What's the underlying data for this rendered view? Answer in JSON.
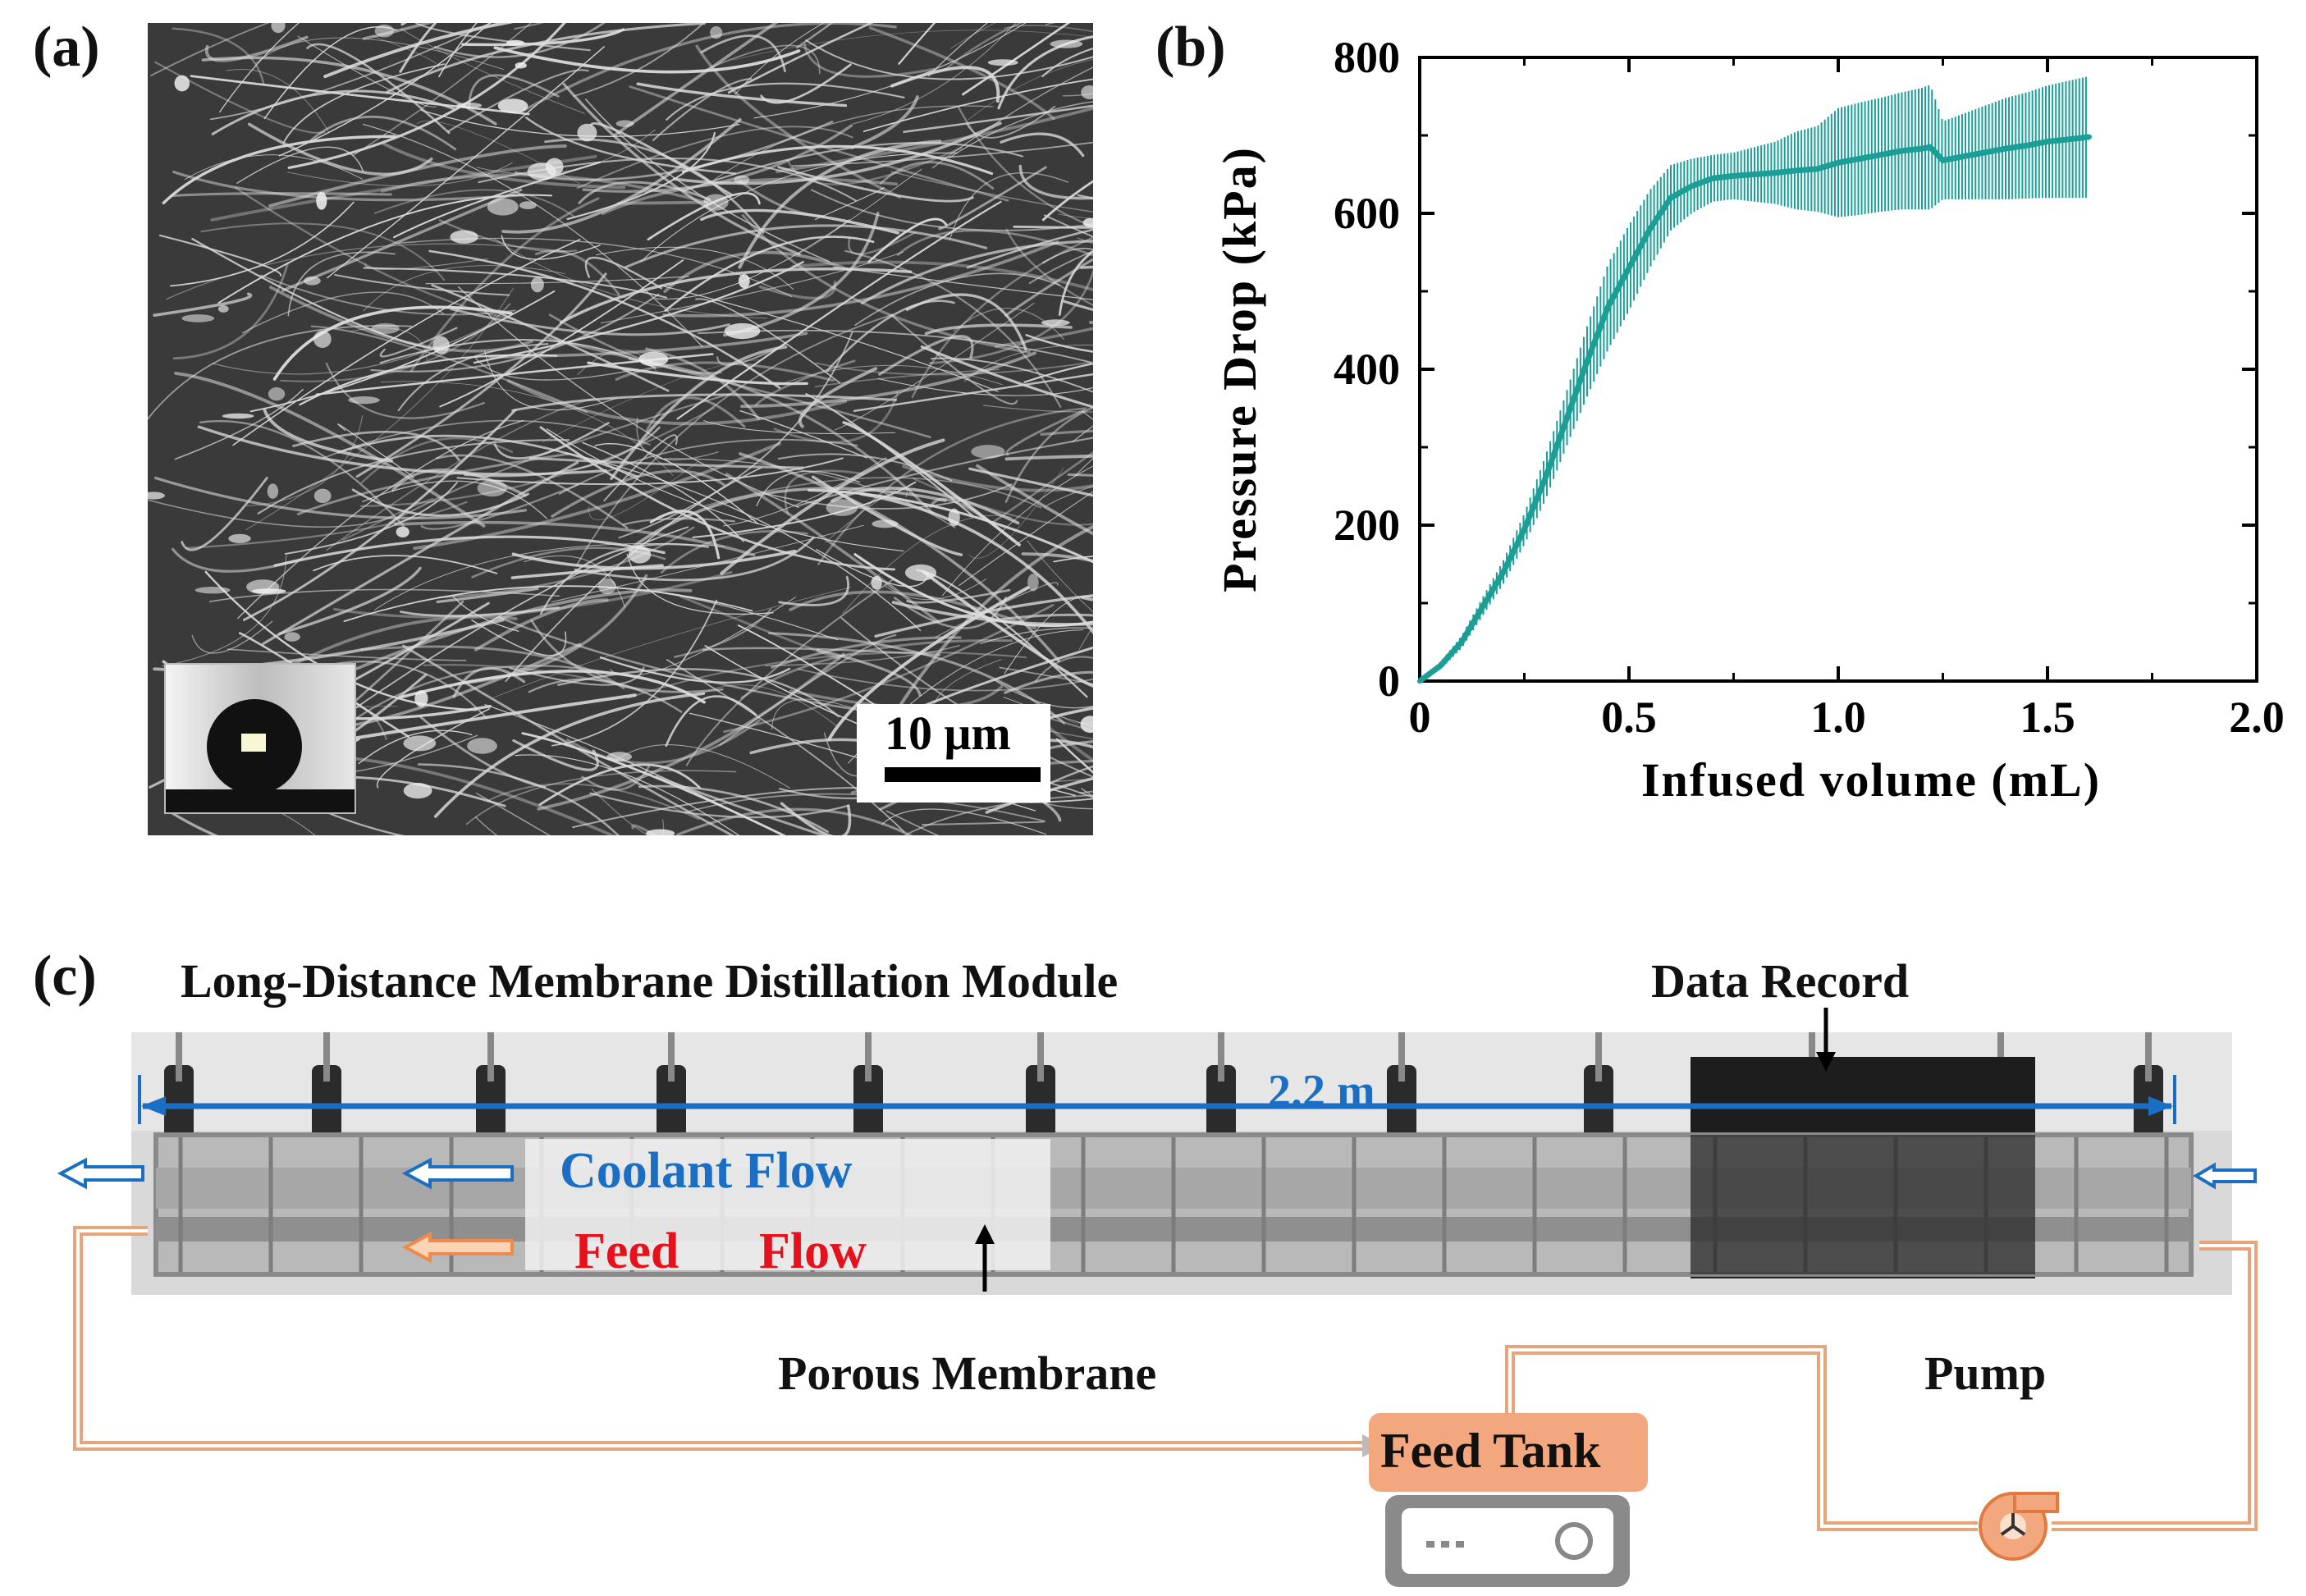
{
  "panels": {
    "a": {
      "label": "(a)",
      "scale_bar": "10 μm"
    },
    "b": {
      "label": "(b)"
    },
    "c": {
      "label": "(c)",
      "module_title": "Long-Distance Membrane Distillation Module",
      "data_record": "Data Record",
      "length_label": "2.2 m",
      "coolant_flow": "Coolant Flow",
      "feed_word": "Feed",
      "flow_word": "Flow",
      "porous_membrane": "Porous Membrane",
      "pump": "Pump",
      "feed_tank": "Feed Tank"
    }
  },
  "colors": {
    "series": "#1a9e96",
    "coolant": "#1a6fc4",
    "feed": "#e8101a",
    "pipe": "#e8a47a",
    "tank": "#f2a77e"
  },
  "chart_data": {
    "type": "line",
    "title": "",
    "xlabel": "Infused volume (mL)",
    "ylabel": "Pressure Drop (kPa)",
    "xlim": [
      0,
      2.0
    ],
    "ylim": [
      0,
      800
    ],
    "xticks": [
      0,
      0.5,
      1.0,
      1.5,
      2.0
    ],
    "xtick_labels": [
      "0",
      "0.5",
      "1.0",
      "1.5",
      "2.0"
    ],
    "yticks": [
      0,
      200,
      400,
      600,
      800
    ],
    "ytick_labels": [
      "0",
      "200",
      "400",
      "600",
      "800"
    ],
    "series": [
      {
        "name": "Pressure Drop",
        "x": [
          0,
          0.05,
          0.1,
          0.15,
          0.2,
          0.25,
          0.3,
          0.35,
          0.4,
          0.45,
          0.5,
          0.55,
          0.6,
          0.65,
          0.7,
          0.75,
          0.8,
          0.85,
          0.9,
          0.95,
          1.0,
          1.05,
          1.1,
          1.15,
          1.2,
          1.22,
          1.25,
          1.3,
          1.35,
          1.4,
          1.45,
          1.5,
          1.55,
          1.6
        ],
        "y": [
          0,
          20,
          50,
          95,
          140,
          195,
          260,
          335,
          410,
          480,
          530,
          580,
          620,
          635,
          645,
          648,
          650,
          652,
          655,
          657,
          665,
          670,
          675,
          680,
          683,
          685,
          668,
          673,
          678,
          683,
          687,
          692,
          695,
          698
        ],
        "error": [
          2,
          5,
          8,
          12,
          15,
          20,
          28,
          35,
          45,
          55,
          55,
          50,
          42,
          35,
          30,
          30,
          35,
          40,
          50,
          55,
          70,
          72,
          73,
          75,
          78,
          80,
          50,
          55,
          60,
          65,
          68,
          72,
          75,
          78
        ]
      }
    ]
  }
}
